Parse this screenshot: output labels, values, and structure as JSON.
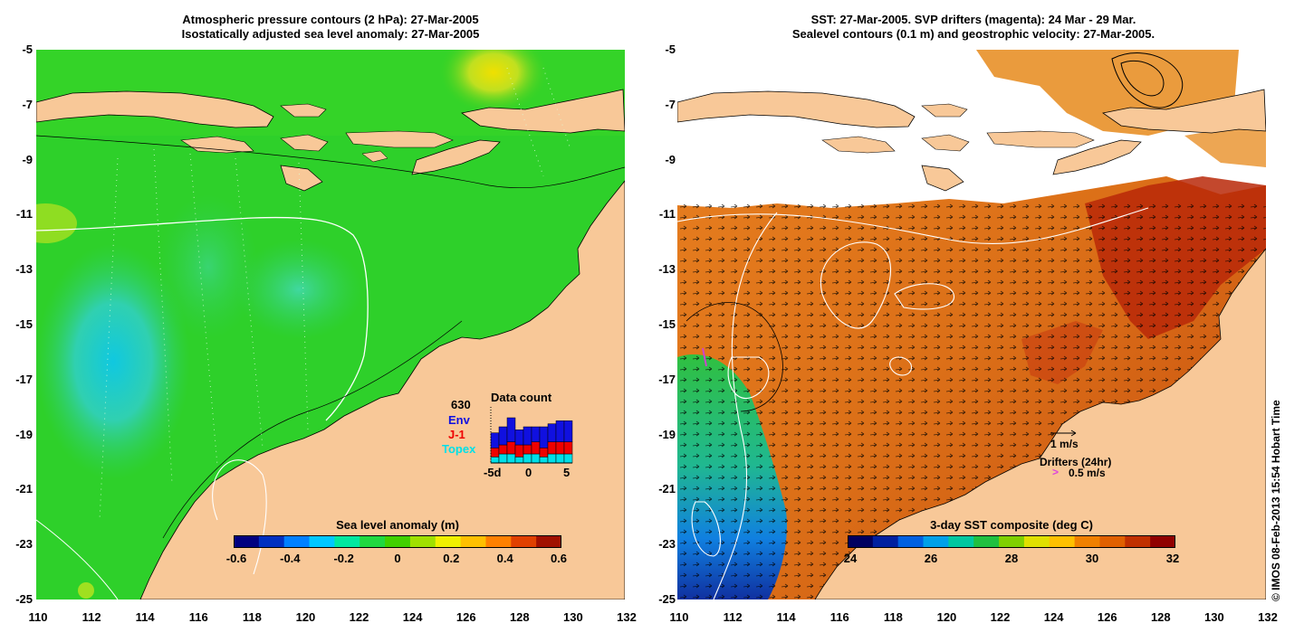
{
  "left_panel": {
    "title_line1": "Atmospheric pressure contours (2 hPa): 27-Mar-2005",
    "title_line2": "Isostatically adjusted sea level anomaly: 27-Mar-2005",
    "colorbar": {
      "title": "Sea level anomaly (m)",
      "ticks": [
        "-0.6",
        "-0.4",
        "-0.2",
        "0",
        "0.2",
        "0.4",
        "0.6"
      ],
      "colors": [
        "#000080",
        "#0030c0",
        "#0080ff",
        "#00c8ff",
        "#00e8a0",
        "#20d840",
        "#40d000",
        "#a0e000",
        "#f0f000",
        "#ffc000",
        "#ff8000",
        "#e04000",
        "#a01000"
      ]
    },
    "data_count": {
      "title": "Data count",
      "total": "630",
      "env_label": "Env",
      "j1_label": "J-1",
      "topex_label": "Topex",
      "x_ticks": [
        "-5d",
        "0",
        "5"
      ],
      "env_values": [
        5,
        6,
        8,
        5,
        6,
        5,
        7,
        6,
        7,
        7
      ],
      "j1_values": [
        3,
        3,
        4,
        4,
        3,
        4,
        3,
        4,
        4,
        4
      ],
      "topex_values": [
        2,
        3,
        3,
        2,
        3,
        3,
        2,
        3,
        3,
        3
      ],
      "colors": {
        "env": "#1010e0",
        "j1": "#ee0000",
        "topex": "#00e0e8"
      }
    }
  },
  "right_panel": {
    "title_line1": "SST: 27-Mar-2005. SVP drifters (magenta): 24 Mar - 29 Mar.",
    "title_line2": "Sealevel contours (0.1 m) and geostrophic velocity: 27-Mar-2005.",
    "colorbar": {
      "title": "3-day SST composite (deg C)",
      "ticks": [
        "24",
        "26",
        "28",
        "30",
        "32"
      ],
      "colors": [
        "#000060",
        "#0020a0",
        "#0060e0",
        "#00a0e8",
        "#00c8a0",
        "#20c040",
        "#80d000",
        "#e0e000",
        "#ffc000",
        "#f08000",
        "#e06000",
        "#c03000",
        "#900000"
      ]
    },
    "velocity_scale_label": "1 m/s",
    "drifters_label": "Drifters (24hr)",
    "drifter_speed_label": "0.5 m/s"
  },
  "axes": {
    "y_ticks": [
      "-5",
      "-7",
      "-9",
      "-11",
      "-13",
      "-15",
      "-17",
      "-19",
      "-21",
      "-23",
      "-25"
    ],
    "x_ticks": [
      "110",
      "112",
      "114",
      "116",
      "118",
      "120",
      "122",
      "124",
      "126",
      "128",
      "130",
      "132"
    ]
  },
  "credit": "© IMOS 08-Feb-2013 15:54 Hobart Time",
  "colors": {
    "land": "#f8c898",
    "ocean_green": "#2cd02c",
    "sst_orange": "#e07818",
    "sst_red": "#b02000"
  }
}
